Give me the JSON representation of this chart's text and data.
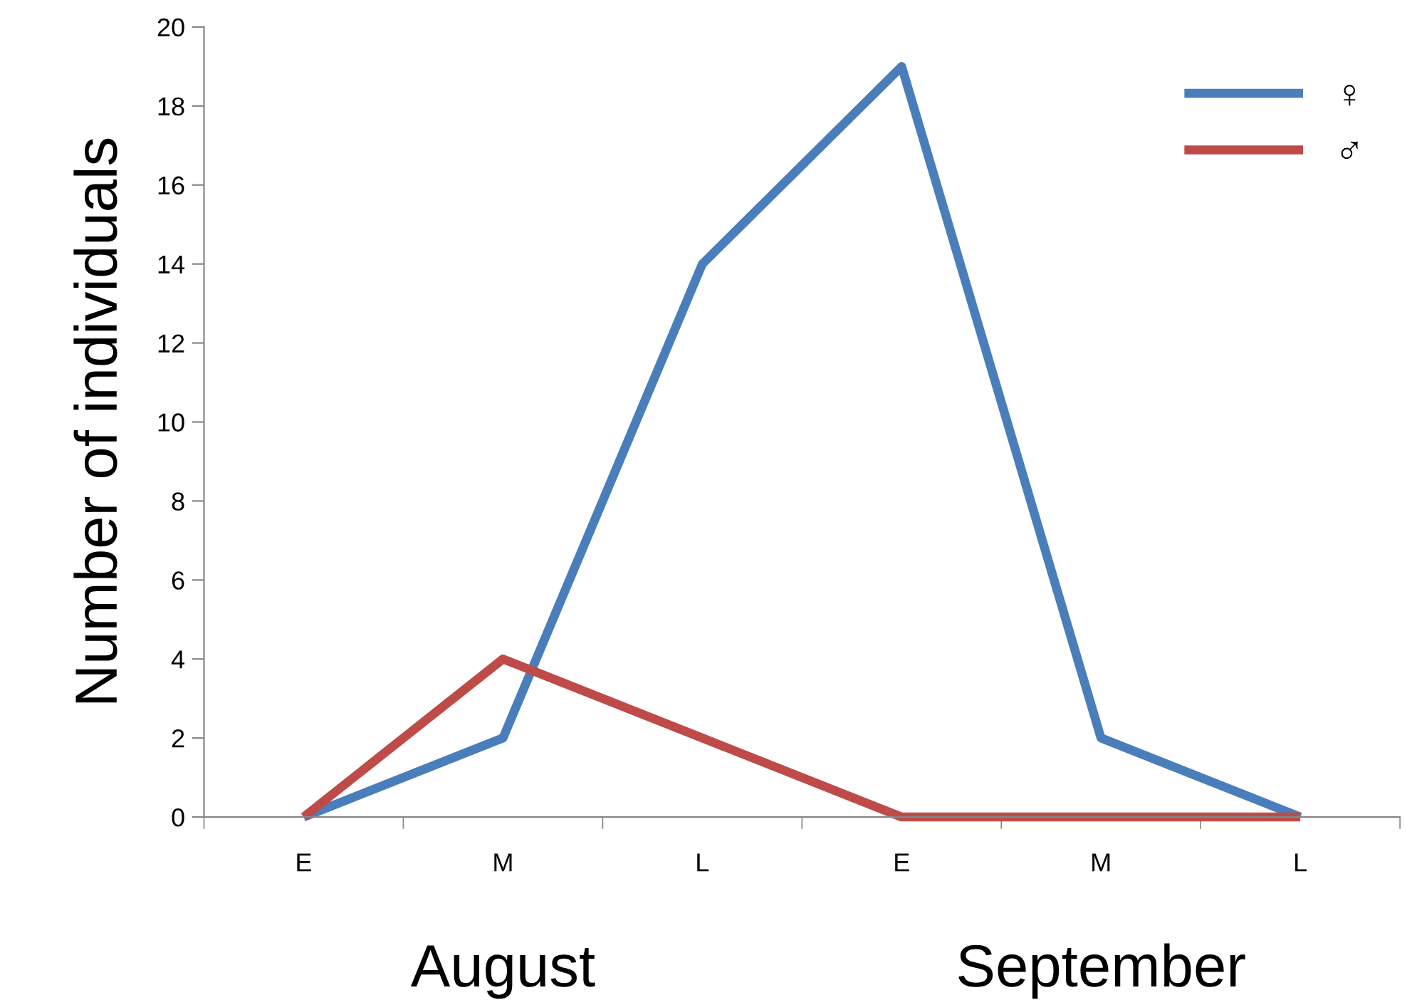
{
  "chart_data": {
    "type": "line",
    "ylabel": "Number of individuals",
    "categories": [
      "E",
      "M",
      "L",
      "E",
      "M",
      "L"
    ],
    "series": [
      {
        "name": "♀",
        "color": "#4a7ebb",
        "values": [
          0,
          2,
          14,
          19,
          2,
          0
        ]
      },
      {
        "name": "♂",
        "color": "#be4b48",
        "values": [
          0,
          4,
          2,
          0,
          0,
          0
        ]
      }
    ],
    "ylim": [
      0,
      20
    ],
    "yticks": [
      0,
      2,
      4,
      6,
      8,
      10,
      12,
      14,
      16,
      18,
      20
    ],
    "annotations": [
      "August",
      "September"
    ],
    "legend": "top right",
    "grid": false,
    "marker": "none",
    "line_style": "solid"
  }
}
